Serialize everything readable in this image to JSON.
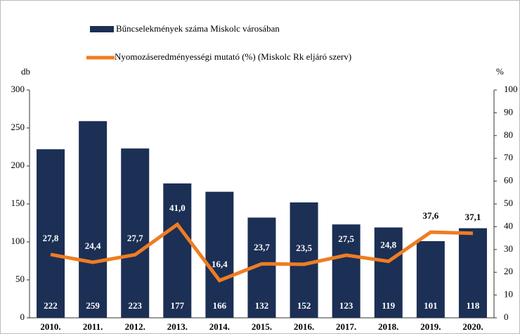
{
  "chart_data": {
    "type": "bar-line",
    "categories": [
      "2010.",
      "2011.",
      "2012.",
      "2013.",
      "2014.",
      "2015.",
      "2016.",
      "2017.",
      "2018.",
      "2019.",
      "2020."
    ],
    "y_label": "db",
    "y2_label": "%",
    "ylim": [
      0,
      300
    ],
    "yticks": [
      0,
      50,
      100,
      150,
      200,
      250,
      300
    ],
    "y2lim": [
      0,
      100
    ],
    "y2ticks": [
      0,
      10,
      20,
      30,
      40,
      50,
      60,
      70,
      80,
      90,
      100
    ],
    "grid": false,
    "series": [
      {
        "name": "Bűncselekmények száma Miskolc városában",
        "type": "bar",
        "color": "#1c2f55",
        "values": [
          222,
          259,
          223,
          177,
          166,
          132,
          152,
          123,
          119,
          101,
          118
        ]
      },
      {
        "name": "Nyomozáseredményességi mutató (%) (Miskolc Rk eljáró szerv)",
        "type": "line",
        "axis": "y2",
        "color": "#ee7d22",
        "values": [
          27.8,
          24.4,
          27.7,
          41.0,
          16.4,
          23.7,
          23.5,
          27.5,
          24.8,
          37.6,
          37.1
        ],
        "value_labels": [
          "27,8",
          "24,4",
          "27,7",
          "41,0",
          "16,4",
          "23,7",
          "23,5",
          "27,5",
          "24,8",
          "37,6",
          "37,1"
        ],
        "label_colors": [
          "#ffffff",
          "#ffffff",
          "#ffffff",
          "#ffffff",
          "#ffffff",
          "#ffffff",
          "#ffffff",
          "#ffffff",
          "#ffffff",
          "#000000",
          "#000000"
        ]
      }
    ]
  }
}
